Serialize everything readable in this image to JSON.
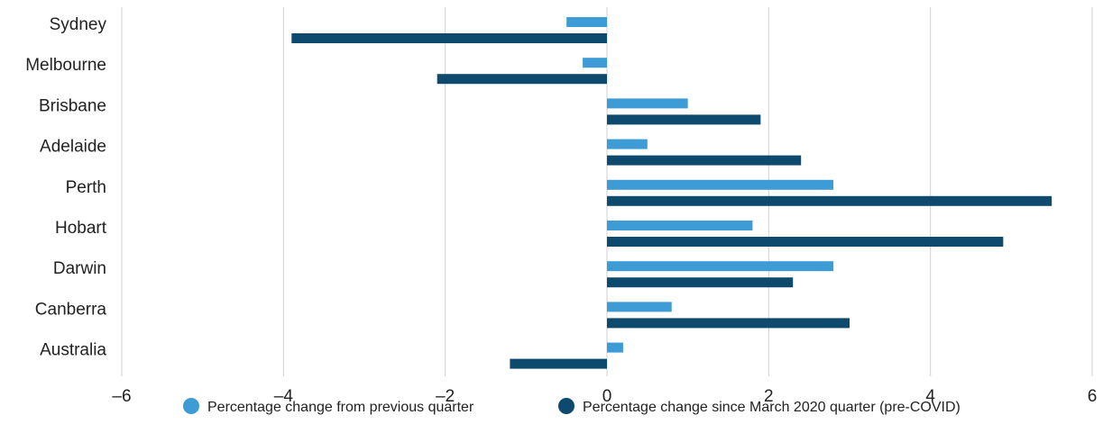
{
  "chart_data": {
    "type": "bar",
    "orientation": "horizontal",
    "categories": [
      "Sydney",
      "Melbourne",
      "Brisbane",
      "Adelaide",
      "Perth",
      "Hobart",
      "Darwin",
      "Canberra",
      "Australia"
    ],
    "series": [
      {
        "name": "Percentage change from previous quarter",
        "color": "#3d9bd6",
        "values": [
          -0.5,
          -0.3,
          1.0,
          0.5,
          2.8,
          1.8,
          2.8,
          0.8,
          0.2
        ]
      },
      {
        "name": "Percentage change since March 2020 quarter (pre-COVID)",
        "color": "#0d4a6e",
        "values": [
          -3.9,
          -2.1,
          1.9,
          2.4,
          5.5,
          4.9,
          2.3,
          3.0,
          -1.2
        ]
      }
    ],
    "xlim": [
      -6,
      6
    ],
    "xticks": [
      -6,
      -4,
      -2,
      0,
      2,
      4,
      6
    ],
    "xtick_labels": [
      "–6",
      "–4",
      "–2",
      "0",
      "2",
      "4",
      "6"
    ],
    "grid": true,
    "legend_position": "bottom"
  }
}
